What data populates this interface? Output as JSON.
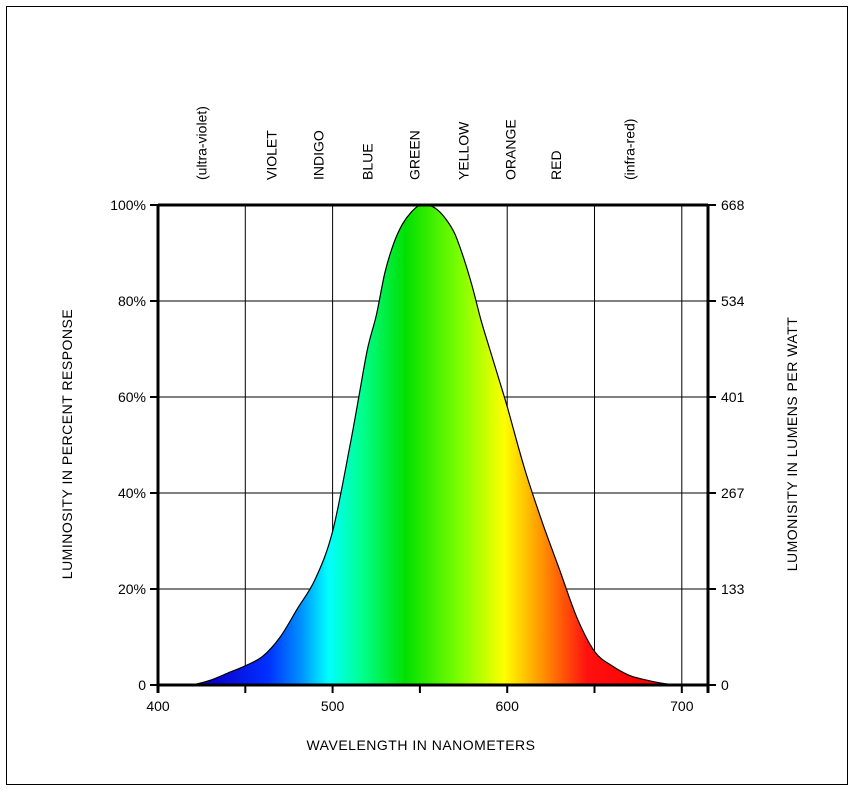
{
  "chart_data": {
    "type": "area",
    "title": "",
    "xlabel": "WAVELENGTH  IN  NANOMETERS",
    "ylabel_left": "LUMINOSITY  IN  PERCENT  RESPONSE",
    "ylabel_right": "LUMONISITY  IN  LUMENS  PER  WATT",
    "xlim": [
      400,
      715
    ],
    "ylim": [
      0,
      100
    ],
    "x_ticks": [
      400,
      500,
      600,
      700
    ],
    "x_tick_labels": [
      "400",
      "500",
      "600",
      "700"
    ],
    "y_ticks_left": [
      0,
      20,
      40,
      60,
      80,
      100
    ],
    "y_tick_labels_left": [
      "0",
      "20%",
      "40%",
      "60%",
      "80%",
      "100%"
    ],
    "y_tick_labels_right": [
      "0",
      "133",
      "267",
      "401",
      "534",
      "668"
    ],
    "grid": true,
    "x_grid_lines": [
      450,
      500,
      550,
      600,
      650,
      700
    ],
    "color_bands": [
      {
        "label": "(ultra-violet)",
        "x": 425
      },
      {
        "label": "VIOLET",
        "x": 465
      },
      {
        "label": "INDIGO",
        "x": 492
      },
      {
        "label": "BLUE",
        "x": 520
      },
      {
        "label": "GREEN",
        "x": 547
      },
      {
        "label": "YELLOW",
        "x": 575
      },
      {
        "label": "ORANGE",
        "x": 602
      },
      {
        "label": "RED",
        "x": 628
      },
      {
        "label": "(infra-red)",
        "x": 670
      }
    ],
    "series": [
      {
        "x": [
          420,
          430,
          440,
          450,
          460,
          470,
          480,
          490,
          500,
          510,
          515,
          520,
          525,
          530,
          535,
          540,
          545,
          550,
          555,
          560,
          565,
          570,
          575,
          580,
          585,
          590,
          595,
          600,
          610,
          620,
          630,
          640,
          650,
          660,
          670,
          680,
          690,
          700
        ],
        "values": [
          0,
          1,
          2.5,
          4,
          6,
          10,
          16,
          22,
          32,
          50,
          60,
          70,
          77,
          86,
          92,
          96,
          98.5,
          100,
          100,
          99,
          97,
          94,
          89,
          83,
          76,
          70,
          64,
          58,
          45,
          34,
          24,
          14,
          7,
          4,
          2,
          1,
          0.3,
          0
        ]
      }
    ]
  }
}
